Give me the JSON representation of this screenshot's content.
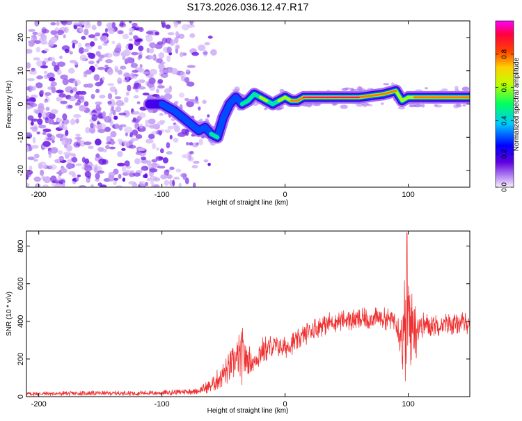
{
  "figure_title": "S173.2026.036.12.47.R17",
  "colors": {
    "snr_line": "#f03030",
    "axes": "#000000",
    "background": "#ffffff"
  },
  "chart_data": [
    {
      "type": "heatmap",
      "name": "spectrogram",
      "title": "S173.2026.036.12.47.R17",
      "xlabel": "Height of straight line (km)",
      "ylabel": "Frequency (Hz)",
      "xlim": [
        -210,
        150
      ],
      "ylim": [
        -25,
        25
      ],
      "xticks": [
        -200,
        -100,
        0,
        100
      ],
      "xtick_labels": [
        "-200",
        "-100",
        "0",
        "100"
      ],
      "yticks": [
        -20,
        -10,
        0,
        10,
        20
      ],
      "ytick_labels": [
        "-20",
        "-10",
        "0",
        "10",
        "20"
      ],
      "colormap": "rainbow (violet low → magenta high)",
      "colorbar": {
        "label": "Normalized spectral amplitude",
        "range": [
          0,
          1
        ],
        "ticks": [
          0.0,
          0.2,
          0.4,
          0.6,
          0.8
        ],
        "tick_labels": [
          "0.0",
          "0.2",
          "0.4",
          "0.6",
          "0.8"
        ]
      },
      "ridge": {
        "description": "dominant frequency trace vs height",
        "x": [
          -110,
          -100,
          -90,
          -80,
          -70,
          -65,
          -60,
          -55,
          -50,
          -45,
          -40,
          -35,
          -30,
          -25,
          -20,
          -15,
          -10,
          -5,
          0,
          5,
          10,
          15,
          20,
          40,
          60,
          80,
          90,
          95,
          100,
          105,
          120,
          150
        ],
        "y": [
          0,
          0,
          -2,
          -5,
          -8,
          -7,
          -9,
          -10,
          -4,
          0,
          2,
          0,
          1,
          3,
          2,
          1,
          0,
          1,
          2,
          1,
          1,
          2,
          2,
          2,
          2,
          3,
          4,
          1,
          2,
          2,
          2,
          2
        ],
        "amplitude": [
          0.2,
          0.3,
          0.3,
          0.35,
          0.45,
          0.4,
          0.5,
          0.45,
          0.4,
          0.35,
          0.4,
          0.45,
          0.5,
          0.55,
          0.6,
          0.6,
          0.55,
          0.6,
          0.75,
          0.85,
          0.9,
          0.95,
          0.97,
          0.97,
          0.95,
          0.92,
          0.8,
          0.6,
          0.7,
          0.85,
          0.85,
          0.8
        ]
      },
      "noise_region_x": [
        -210,
        -70
      ]
    },
    {
      "type": "line",
      "name": "snr",
      "xlabel": "Height of straight line (km)",
      "ylabel": "SNR (10 * v/v)",
      "xlim": [
        -210,
        150
      ],
      "ylim": [
        0,
        880
      ],
      "xticks": [
        -200,
        -100,
        0,
        100
      ],
      "xtick_labels": [
        "-200",
        "-100",
        "0",
        "100"
      ],
      "yticks": [
        0,
        200,
        400,
        600,
        800
      ],
      "ytick_labels": [
        "0",
        "200",
        "400",
        "600",
        "800"
      ],
      "envelope": {
        "x": [
          -210,
          -100,
          -70,
          -60,
          -50,
          -40,
          -35,
          -30,
          -25,
          -20,
          -10,
          0,
          10,
          20,
          30,
          40,
          60,
          80,
          90,
          95,
          98,
          100,
          103,
          110,
          130,
          150
        ],
        "mean": [
          15,
          20,
          30,
          60,
          120,
          190,
          220,
          200,
          180,
          240,
          270,
          260,
          300,
          350,
          380,
          400,
          410,
          415,
          410,
          320,
          300,
          350,
          380,
          380,
          385,
          390
        ],
        "spread": [
          12,
          14,
          18,
          40,
          70,
          100,
          160,
          80,
          60,
          80,
          60,
          60,
          60,
          60,
          60,
          60,
          60,
          60,
          60,
          200,
          420,
          500,
          300,
          70,
          60,
          60
        ]
      },
      "peak": {
        "x": 99,
        "y": 870
      }
    }
  ]
}
